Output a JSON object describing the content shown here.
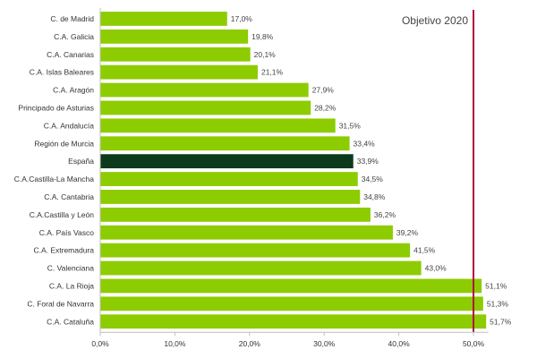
{
  "chart_data": {
    "type": "bar",
    "orientation": "horizontal",
    "categories": [
      "C. de Madrid",
      "C.A. Galicia",
      "C.A. Canarias",
      "C.A. Islas Baleares",
      "C.A. Aragón",
      "Principado de Asturias",
      "C.A. Andalucía",
      "Región de Murcia",
      "España",
      "C.A.Castilla-La Mancha",
      "C.A. Cantabria",
      "C.A.Castilla y León",
      "C.A. País Vasco",
      "C.A. Extremadura",
      "C. Valenciana",
      "C.A. La Rioja",
      "C. Foral de Navarra",
      "C.A. Cataluña"
    ],
    "values": [
      17.0,
      19.8,
      20.1,
      21.1,
      27.9,
      28.2,
      31.5,
      33.4,
      33.9,
      34.5,
      34.8,
      36.2,
      39.2,
      41.5,
      43.0,
      51.1,
      51.3,
      51.7
    ],
    "value_labels": [
      "17,0%",
      "19,8%",
      "20,1%",
      "21,1%",
      "27,9%",
      "28,2%",
      "31,5%",
      "33,4%",
      "33,9%",
      "34,5%",
      "34,8%",
      "36,2%",
      "39,2%",
      "41,5%",
      "43,0%",
      "51,1%",
      "51,3%",
      "51,7%"
    ],
    "highlight": "España",
    "xlim": [
      0,
      52
    ],
    "x_ticks": [
      0,
      10,
      20,
      30,
      40,
      50
    ],
    "x_tick_labels": [
      "0,0%",
      "10,0%",
      "20,0%",
      "30,0%",
      "40,0%",
      "50,0%"
    ],
    "target": {
      "value": 50,
      "label": "Objetivo 2020"
    },
    "colors": {
      "bar": "#8ccc00",
      "highlight": "#0d3a1c",
      "target": "#b01040",
      "axis": "#bfbfbf"
    },
    "title": "",
    "xlabel": "",
    "ylabel": "",
    "grid": false,
    "legend": "none"
  }
}
